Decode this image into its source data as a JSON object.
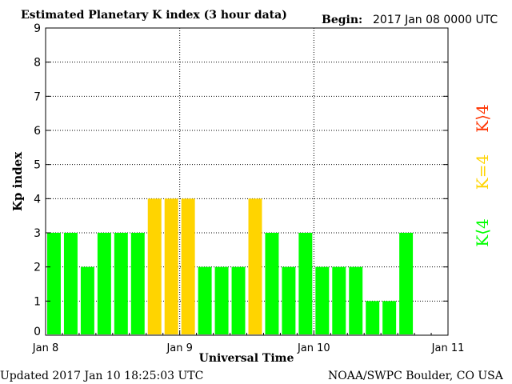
{
  "header": {
    "title": "Estimated Planetary K index (3 hour data)",
    "begin_label": "Begin:",
    "begin_value": "2017 Jan 08 0000 UTC"
  },
  "footer": {
    "updated": "Updated 2017 Jan 10 18:25:03 UTC",
    "source": "NOAA/SWPC Boulder, CO USA"
  },
  "legend": {
    "high": "K⟩4",
    "equal": "K=4",
    "low": "K⟨4"
  },
  "colors": {
    "low": "#00ff00",
    "equal": "#ffd400",
    "high": "#ff3300",
    "grid": "#000000",
    "background": "#ffffff"
  },
  "chart_data": {
    "type": "bar",
    "title": "Estimated Planetary K index (3 hour data)",
    "xlabel": "Universal Time",
    "ylabel": "Kp index",
    "ylim": [
      0,
      9
    ],
    "yticks": [
      "0",
      "1",
      "2",
      "3",
      "4",
      "5",
      "6",
      "7",
      "8",
      "9"
    ],
    "xticks": [
      "Jan 8",
      "Jan 9",
      "Jan 10",
      "Jan 11"
    ],
    "grid": true,
    "bars_per_day": 8,
    "values": [
      3,
      3,
      2,
      3,
      3,
      3,
      4,
      4,
      4,
      2,
      2,
      2,
      4,
      3,
      2,
      3,
      2,
      2,
      2,
      1,
      1,
      3
    ]
  }
}
